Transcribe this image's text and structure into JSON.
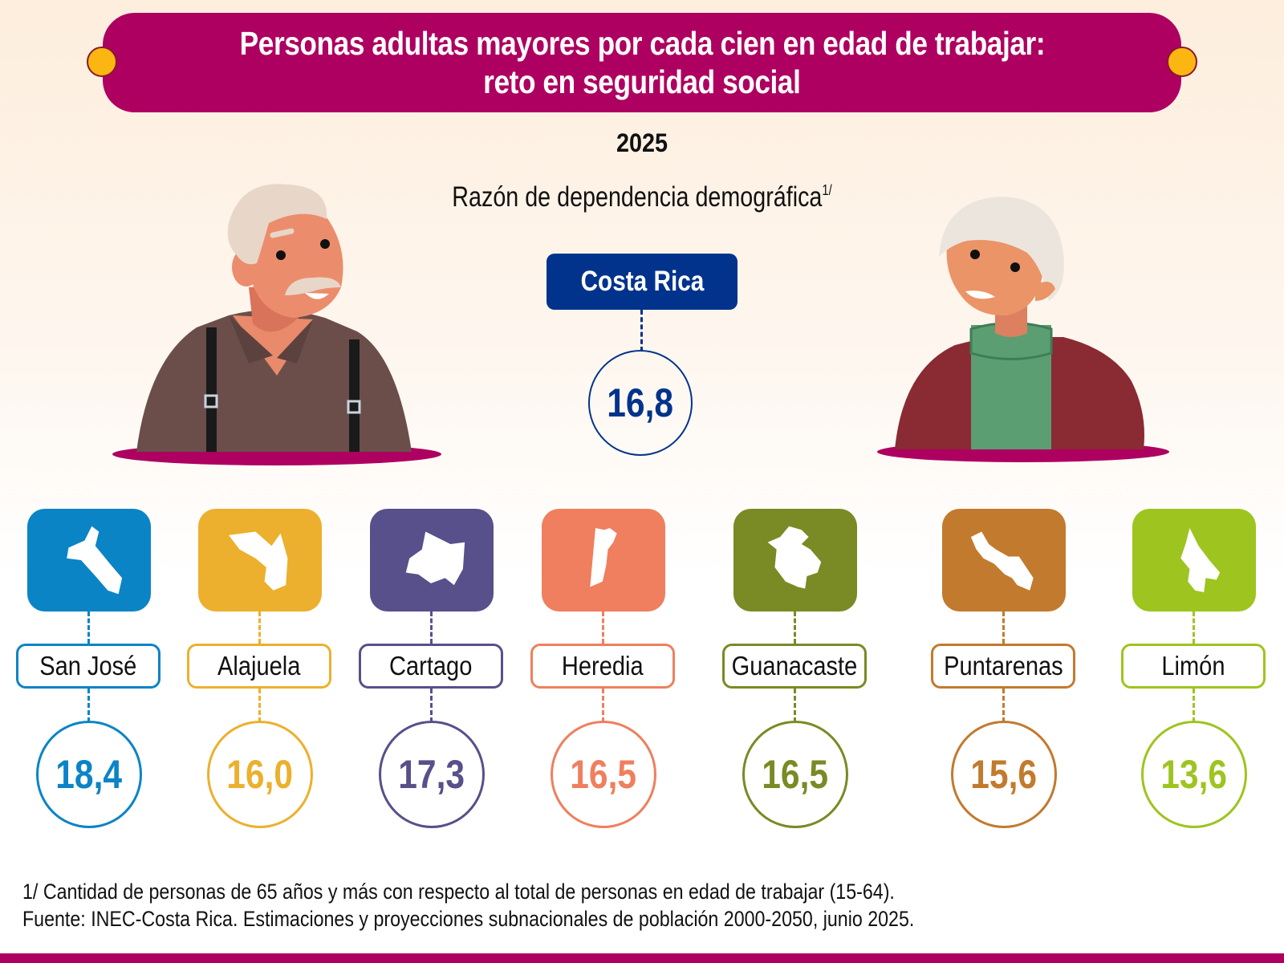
{
  "header": {
    "title_line1": "Personas adultas mayores por cada cien en edad de trabajar:",
    "title_line2": "reto en seguridad social",
    "year": "2025",
    "subtitle": "Razón de dependencia demográfica",
    "subtitle_note": "1/"
  },
  "national": {
    "label": "Costa Rica",
    "value": "16,8",
    "color": "#02338c"
  },
  "provinces": [
    {
      "name": "San José",
      "value": "18,4",
      "color": "#0b84c6"
    },
    {
      "name": "Alajuela",
      "value": "16,0",
      "color": "#ecb02e"
    },
    {
      "name": "Cartago",
      "value": "17,3",
      "color": "#57508a"
    },
    {
      "name": "Heredia",
      "value": "16,5",
      "color": "#ef7f5e"
    },
    {
      "name": "Guanacaste",
      "value": "16,5",
      "color": "#7a8a24"
    },
    {
      "name": "Puntarenas",
      "value": "15,6",
      "color": "#c27a2e"
    },
    {
      "name": "Limón",
      "value": "13,6",
      "color": "#9ec41f"
    }
  ],
  "footer": {
    "note": "1/ Cantidad de personas de 65 años y más con respecto al total de personas en edad de trabajar (15-64).",
    "source": "Fuente: INEC-Costa Rica. Estimaciones y proyecciones subnacionales de población 2000-2050, junio 2025."
  },
  "colors": {
    "banner": "#ad0060",
    "accent_dot": "#fbb612"
  }
}
